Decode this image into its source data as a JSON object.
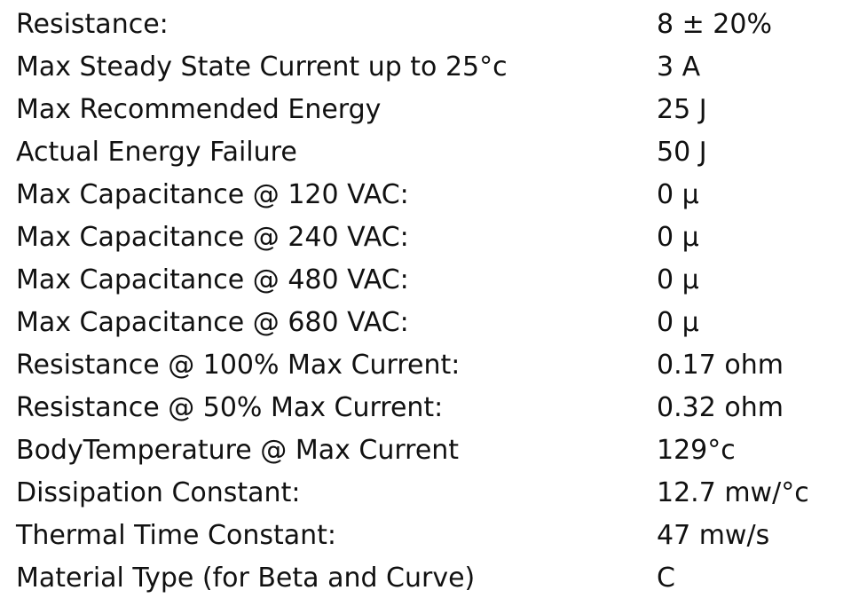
{
  "table": {
    "rows": [
      [
        "Resistance:",
        "8 ± 20%"
      ],
      [
        "Max Steady State Current up to 25°c",
        "3 A"
      ],
      [
        "Max Recommended Energy",
        "25 J"
      ],
      [
        "Actual Energy Failure",
        "50 J"
      ],
      [
        "Max Capacitance @ 120 VAC:",
        "0 µ"
      ],
      [
        "Max Capacitance @ 240 VAC:",
        "0 µ"
      ],
      [
        "Max Capacitance @ 480 VAC:",
        "0 µ"
      ],
      [
        "Max Capacitance @ 680 VAC:",
        "0 µ"
      ],
      [
        "Resistance @ 100% Max Current:",
        "0.17 ohm"
      ],
      [
        "Resistance @ 50% Max Current:",
        "0.32 ohm"
      ],
      [
        "BodyTemperature @ Max Current",
        "129°c"
      ],
      [
        "Dissipation Constant:",
        "12.7 mw/°c"
      ],
      [
        "Thermal Time Constant:",
        "47 mw/s"
      ],
      [
        "Material Type (for Beta and Curve)",
        "C"
      ]
    ]
  }
}
